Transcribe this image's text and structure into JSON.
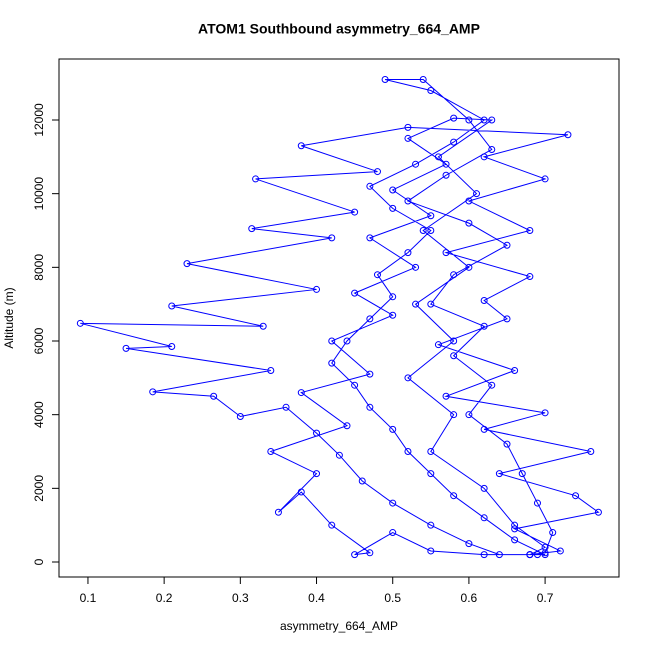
{
  "chart_data": {
    "type": "line",
    "title": "ATOM1 Southbound asymmetry_664_AMP",
    "xlabel": "asymmetry_664_AMP",
    "ylabel": "Altitude (m)",
    "color": "#0000ff",
    "markers": true,
    "xlim": [
      0.062,
      0.797
    ],
    "ylim": [
      -407,
      13656
    ],
    "xticks": [
      0.1,
      0.2,
      0.3,
      0.4,
      0.5,
      0.6,
      0.7
    ],
    "yticks": [
      0,
      2000,
      4000,
      6000,
      8000,
      10000,
      12000
    ],
    "x": [
      0.68,
      0.7,
      0.66,
      0.62,
      0.58,
      0.55,
      0.52,
      0.5,
      0.47,
      0.45,
      0.42,
      0.44,
      0.47,
      0.5,
      0.48,
      0.52,
      0.55,
      0.5,
      0.47,
      0.53,
      0.58,
      0.62,
      0.55,
      0.49,
      0.54,
      0.6,
      0.63,
      0.57,
      0.52,
      0.6,
      0.65,
      0.58,
      0.55,
      0.62,
      0.58,
      0.63,
      0.6,
      0.65,
      0.67,
      0.69,
      0.71,
      0.7,
      0.69,
      0.64,
      0.6,
      0.55,
      0.5,
      0.46,
      0.43,
      0.4,
      0.36,
      0.3,
      0.265,
      0.185,
      0.34,
      0.15,
      0.21,
      0.09,
      0.33,
      0.21,
      0.4,
      0.23,
      0.42,
      0.315,
      0.45,
      0.32,
      0.48,
      0.38,
      0.52,
      0.73,
      0.62,
      0.7,
      0.6,
      0.68,
      0.57,
      0.68,
      0.62,
      0.65,
      0.56,
      0.66,
      0.57,
      0.7,
      0.62,
      0.76,
      0.64,
      0.74,
      0.77,
      0.66,
      0.72,
      0.68,
      0.62,
      0.55,
      0.5,
      0.45,
      0.47,
      0.42,
      0.38,
      0.35,
      0.4,
      0.34,
      0.44,
      0.38,
      0.47,
      0.42,
      0.5,
      0.45,
      0.53,
      0.47,
      0.55,
      0.5,
      0.57,
      0.52,
      0.58,
      0.63,
      0.56,
      0.61,
      0.54,
      0.6,
      0.53,
      0.58,
      0.52,
      0.58,
      0.55,
      0.62,
      0.66,
      0.7,
      0.68
    ],
    "values": [
      200,
      200,
      600,
      1200,
      1800,
      2400,
      3000,
      3600,
      4200,
      4800,
      5400,
      6000,
      6600,
      7200,
      7800,
      8400,
      9000,
      9600,
      10200,
      10800,
      11400,
      12000,
      12800,
      13100,
      13100,
      12000,
      11200,
      10500,
      9800,
      9200,
      8600,
      7800,
      7000,
      6400,
      5600,
      4800,
      4000,
      3200,
      2400,
      1600,
      800,
      250,
      200,
      200,
      500,
      1000,
      1600,
      2200,
      2900,
      3500,
      4200,
      3950,
      4500,
      4620,
      5200,
      5800,
      5850,
      6480,
      6400,
      6950,
      7400,
      8100,
      8800,
      9050,
      9500,
      10400,
      10600,
      11300,
      11800,
      11600,
      11000,
      10400,
      9800,
      9000,
      8400,
      7750,
      7100,
      6600,
      5900,
      5200,
      4500,
      4050,
      3600,
      3000,
      2400,
      1800,
      1350,
      900,
      300,
      200,
      200,
      300,
      800,
      200,
      250,
      1000,
      1900,
      1350,
      2400,
      3000,
      3700,
      4600,
      5100,
      6000,
      6700,
      7300,
      8000,
      8800,
      9400,
      10100,
      10800,
      11500,
      12050,
      12000,
      11000,
      10000,
      9000,
      8000,
      7000,
      6000,
      5000,
      4000,
      3000,
      2000,
      1000,
      400,
      200
    ]
  }
}
